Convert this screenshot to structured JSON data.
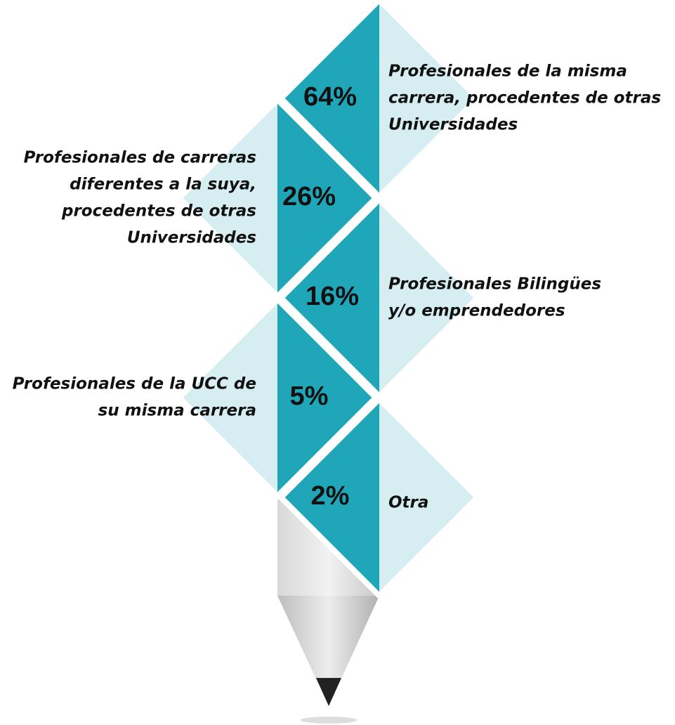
{
  "items": [
    {
      "percent": "64%",
      "label": [
        "Profesionales de la misma",
        "carrera, procedentes de otras",
        "Universidades"
      ]
    },
    {
      "percent": "26%",
      "label": [
        "Profesionales de carreras",
        "diferentes a la suya,",
        "procedentes de otras",
        "Universidades"
      ]
    },
    {
      "percent": "16%",
      "label": [
        "Profesionales Bilingües",
        "y/o emprendedores"
      ]
    },
    {
      "percent": "5%",
      "label": [
        "Profesionales de la UCC de",
        "su misma carrera"
      ]
    },
    {
      "percent": "2%",
      "label": [
        "Otra"
      ]
    }
  ]
}
